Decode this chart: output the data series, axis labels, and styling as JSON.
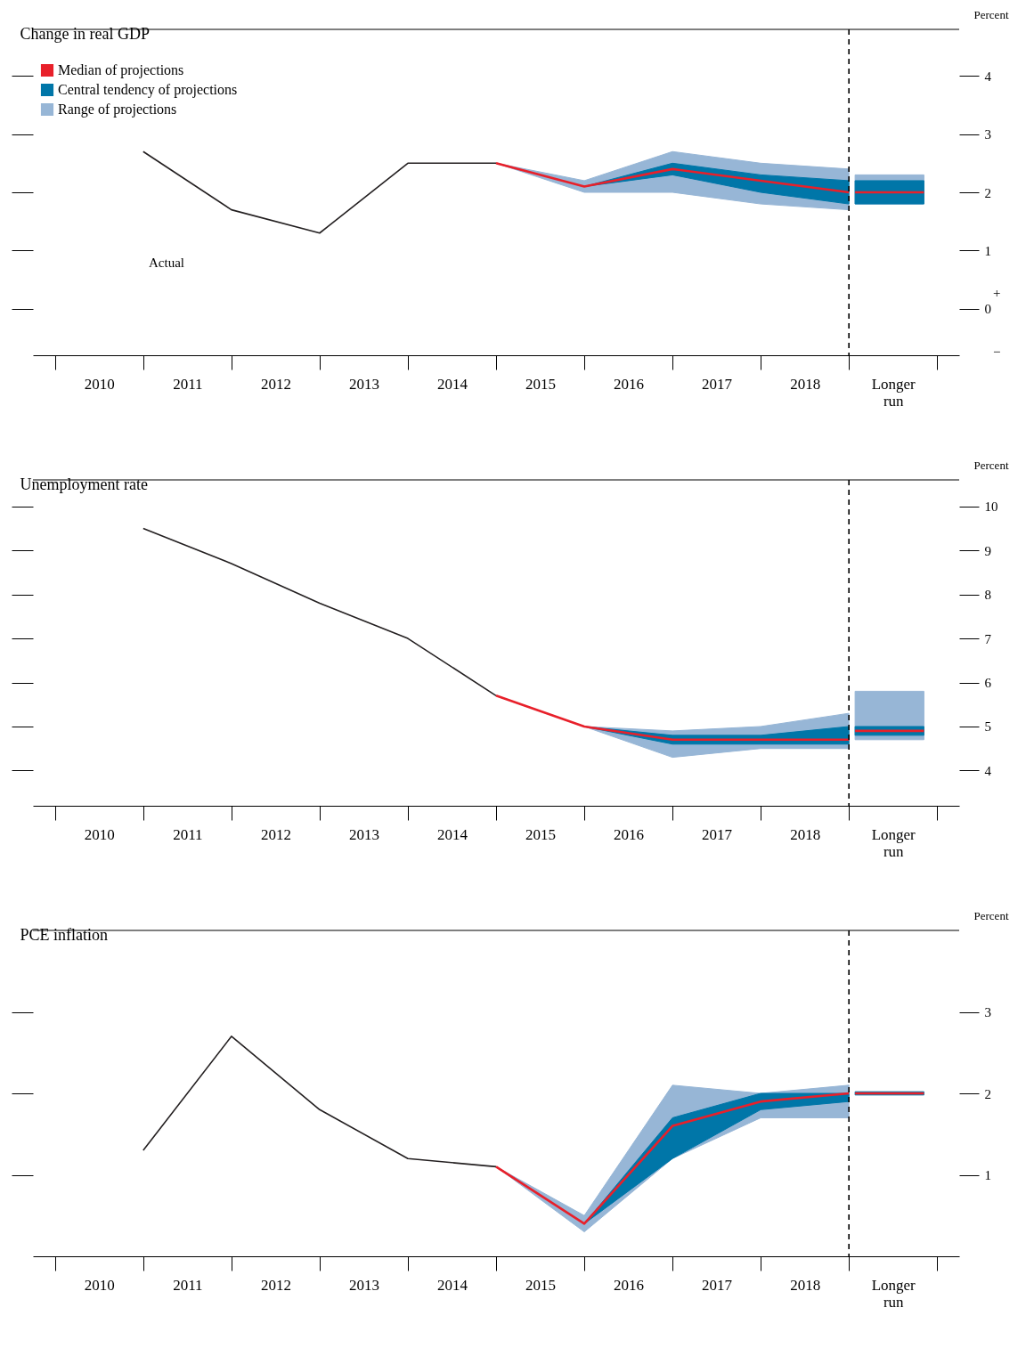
{
  "chart_data": [
    {
      "type": "line",
      "title": "Change in real GDP",
      "ylabel": "Percent",
      "xlim": [
        2008.75,
        2019.25
      ],
      "ylim": [
        -0.8,
        4.8
      ],
      "yticks": [
        0,
        1,
        2,
        3,
        4
      ],
      "grid": false,
      "legend": "top left",
      "xticks": [
        {
          "value": 2009,
          "label": null
        },
        {
          "value": 2009.5,
          "label": "2010"
        },
        {
          "value": 2010,
          "label": null
        },
        {
          "value": 2010.5,
          "label": "2011"
        },
        {
          "value": 2011,
          "label": null
        },
        {
          "value": 2011.5,
          "label": "2012"
        },
        {
          "value": 2012,
          "label": null
        },
        {
          "value": 2012.5,
          "label": "2013"
        },
        {
          "value": 2013,
          "label": null
        },
        {
          "value": 2013.5,
          "label": "2014"
        },
        {
          "value": 2014,
          "label": null
        },
        {
          "value": 2014.5,
          "label": "2015"
        },
        {
          "value": 2015,
          "label": null
        },
        {
          "value": 2015.5,
          "label": "2016"
        },
        {
          "value": 2016,
          "label": null
        },
        {
          "value": 2016.5,
          "label": "2017"
        },
        {
          "value": 2017,
          "label": null
        },
        {
          "value": 2017.5,
          "label": "2018"
        },
        {
          "value": 2018,
          "label": null
        },
        {
          "value": 2018.5,
          "label": "Longer run"
        },
        {
          "value": 2019,
          "label": null
        }
      ],
      "ref_lines": [
        {
          "axis": "x",
          "value": 2018,
          "line_style": "dashed",
          "color": "#000000"
        }
      ],
      "annotations": [
        "Actual",
        "+",
        "−"
      ],
      "series": [
        {
          "name": "Range of projections",
          "type": "area",
          "color": "#97b6d6",
          "x": [
            2014,
            2015,
            2016,
            2017,
            2018
          ],
          "values": [
            null,
            null,
            null,
            null,
            null
          ],
          "lower": [
            2.5,
            2.0,
            2.0,
            1.8,
            1.7
          ],
          "upper": [
            2.5,
            2.2,
            2.7,
            2.5,
            2.4
          ]
        },
        {
          "name": "Central tendency of projections",
          "type": "area",
          "color": "#0076a8",
          "x": [
            2014,
            2015,
            2016,
            2017,
            2018
          ],
          "values": [
            null,
            null,
            null,
            null,
            null
          ],
          "lower": [
            2.5,
            2.1,
            2.3,
            2.0,
            1.8
          ],
          "upper": [
            2.5,
            2.1,
            2.5,
            2.3,
            2.2
          ]
        },
        {
          "type": "line",
          "color": "#231f20",
          "x": [
            2010,
            2011,
            2012,
            2013,
            2014
          ],
          "values": [
            2.7,
            1.7,
            1.3,
            2.5,
            2.5
          ]
        },
        {
          "name": "Median of projections",
          "type": "line",
          "color": "#e8202a",
          "x": [
            2014,
            2015,
            2016,
            2017,
            2018
          ],
          "values": [
            2.5,
            2.1,
            2.4,
            2.2,
            2.0
          ]
        },
        {
          "type": "area",
          "color": "#97b6d6",
          "x": [
            2018.07,
            2018.85
          ],
          "values": [
            null,
            null
          ],
          "lower": [
            1.8,
            1.8
          ],
          "upper": [
            2.3,
            2.3
          ]
        },
        {
          "type": "area",
          "color": "#0076a8",
          "x": [
            2018.07,
            2018.85
          ],
          "values": [
            null,
            null
          ],
          "lower": [
            1.8,
            1.8
          ],
          "upper": [
            2.2,
            2.2
          ]
        },
        {
          "type": "line",
          "color": "#e8202a",
          "x": [
            2018.07,
            2018.85
          ],
          "values": [
            2.0,
            2.0
          ]
        }
      ]
    },
    {
      "type": "line",
      "title": "Unemployment rate",
      "ylabel": "Percent",
      "xlim": [
        2008.75,
        2019.25
      ],
      "ylim": [
        3.2,
        10.6
      ],
      "yticks": [
        4,
        5,
        6,
        7,
        8,
        9,
        10
      ],
      "grid": false,
      "xticks": [
        {
          "value": 2009,
          "label": null
        },
        {
          "value": 2009.5,
          "label": "2010"
        },
        {
          "value": 2010,
          "label": null
        },
        {
          "value": 2010.5,
          "label": "2011"
        },
        {
          "value": 2011,
          "label": null
        },
        {
          "value": 2011.5,
          "label": "2012"
        },
        {
          "value": 2012,
          "label": null
        },
        {
          "value": 2012.5,
          "label": "2013"
        },
        {
          "value": 2013,
          "label": null
        },
        {
          "value": 2013.5,
          "label": "2014"
        },
        {
          "value": 2014,
          "label": null
        },
        {
          "value": 2014.5,
          "label": "2015"
        },
        {
          "value": 2015,
          "label": null
        },
        {
          "value": 2015.5,
          "label": "2016"
        },
        {
          "value": 2016,
          "label": null
        },
        {
          "value": 2016.5,
          "label": "2017"
        },
        {
          "value": 2017,
          "label": null
        },
        {
          "value": 2017.5,
          "label": "2018"
        },
        {
          "value": 2018,
          "label": null
        },
        {
          "value": 2018.5,
          "label": "Longer run"
        },
        {
          "value": 2019,
          "label": null
        }
      ],
      "ref_lines": [
        {
          "axis": "x",
          "value": 2018,
          "line_style": "dashed",
          "color": "#000000"
        }
      ],
      "series": [
        {
          "type": "area",
          "color": "#97b6d6",
          "x": [
            2014,
            2015,
            2016,
            2017,
            2018
          ],
          "values": [
            null,
            null,
            null,
            null,
            null
          ],
          "lower": [
            5.7,
            5.0,
            4.3,
            4.5,
            4.5
          ],
          "upper": [
            5.7,
            5.0,
            4.9,
            5.0,
            5.3
          ]
        },
        {
          "type": "area",
          "color": "#0076a8",
          "x": [
            2014,
            2015,
            2016,
            2017,
            2018
          ],
          "values": [
            null,
            null,
            null,
            null,
            null
          ],
          "lower": [
            5.7,
            5.0,
            4.6,
            4.6,
            4.6
          ],
          "upper": [
            5.7,
            5.0,
            4.8,
            4.8,
            5.0
          ]
        },
        {
          "type": "line",
          "color": "#231f20",
          "x": [
            2010,
            2011,
            2012,
            2013,
            2014
          ],
          "values": [
            9.5,
            8.7,
            7.8,
            7.0,
            5.7
          ]
        },
        {
          "type": "line",
          "color": "#e8202a",
          "x": [
            2014,
            2015,
            2016,
            2017,
            2018
          ],
          "values": [
            5.7,
            5.0,
            4.7,
            4.7,
            4.7
          ]
        },
        {
          "type": "area",
          "color": "#97b6d6",
          "x": [
            2018.07,
            2018.85
          ],
          "values": [
            null,
            null
          ],
          "lower": [
            4.7,
            4.7
          ],
          "upper": [
            5.8,
            5.8
          ]
        },
        {
          "type": "area",
          "color": "#0076a8",
          "x": [
            2018.07,
            2018.85
          ],
          "values": [
            null,
            null
          ],
          "lower": [
            4.8,
            4.8
          ],
          "upper": [
            5.0,
            5.0
          ]
        },
        {
          "type": "line",
          "color": "#e8202a",
          "x": [
            2018.07,
            2018.85
          ],
          "values": [
            4.9,
            4.9
          ]
        }
      ]
    },
    {
      "type": "line",
      "title": "PCE inflation",
      "ylabel": "Percent",
      "xlim": [
        2008.75,
        2019.25
      ],
      "ylim": [
        0.0,
        4.0
      ],
      "yticks": [
        1,
        2,
        3
      ],
      "grid": false,
      "xticks": [
        {
          "value": 2009,
          "label": null
        },
        {
          "value": 2009.5,
          "label": "2010"
        },
        {
          "value": 2010,
          "label": null
        },
        {
          "value": 2010.5,
          "label": "2011"
        },
        {
          "value": 2011,
          "label": null
        },
        {
          "value": 2011.5,
          "label": "2012"
        },
        {
          "value": 2012,
          "label": null
        },
        {
          "value": 2012.5,
          "label": "2013"
        },
        {
          "value": 2013,
          "label": null
        },
        {
          "value": 2013.5,
          "label": "2014"
        },
        {
          "value": 2014,
          "label": null
        },
        {
          "value": 2014.5,
          "label": "2015"
        },
        {
          "value": 2015,
          "label": null
        },
        {
          "value": 2015.5,
          "label": "2016"
        },
        {
          "value": 2016,
          "label": null
        },
        {
          "value": 2016.5,
          "label": "2017"
        },
        {
          "value": 2017,
          "label": null
        },
        {
          "value": 2017.5,
          "label": "2018"
        },
        {
          "value": 2018,
          "label": null
        },
        {
          "value": 2018.5,
          "label": "Longer run"
        },
        {
          "value": 2019,
          "label": null
        }
      ],
      "ref_lines": [
        {
          "axis": "x",
          "value": 2018,
          "line_style": "dashed",
          "color": "#000000"
        }
      ],
      "series": [
        {
          "type": "area",
          "color": "#97b6d6",
          "x": [
            2014,
            2015,
            2016,
            2017,
            2018
          ],
          "values": [
            null,
            null,
            null,
            null,
            null
          ],
          "lower": [
            1.1,
            0.3,
            1.2,
            1.7,
            1.7
          ],
          "upper": [
            1.1,
            0.5,
            2.1,
            2.0,
            2.1
          ]
        },
        {
          "type": "area",
          "color": "#0076a8",
          "x": [
            2014,
            2015,
            2016,
            2017,
            2018
          ],
          "values": [
            null,
            null,
            null,
            null,
            null
          ],
          "lower": [
            1.1,
            0.4,
            1.2,
            1.8,
            1.9
          ],
          "upper": [
            1.1,
            0.4,
            1.7,
            2.0,
            2.0
          ]
        },
        {
          "type": "line",
          "color": "#231f20",
          "x": [
            2010,
            2011,
            2012,
            2013,
            2014
          ],
          "values": [
            1.3,
            2.7,
            1.8,
            1.2,
            1.1
          ]
        },
        {
          "type": "line",
          "color": "#e8202a",
          "x": [
            2014,
            2015,
            2016,
            2017,
            2018
          ],
          "values": [
            1.1,
            0.4,
            1.6,
            1.9,
            2.0
          ]
        },
        {
          "type": "area",
          "color": "#0076a8",
          "x": [
            2018.07,
            2018.85
          ],
          "values": [
            null,
            null
          ],
          "lower": [
            1.98,
            1.98
          ],
          "upper": [
            2.02,
            2.02
          ]
        },
        {
          "type": "line",
          "color": "#e8202a",
          "x": [
            2018.07,
            2018.85
          ],
          "values": [
            2.0,
            2.0
          ]
        }
      ]
    }
  ]
}
